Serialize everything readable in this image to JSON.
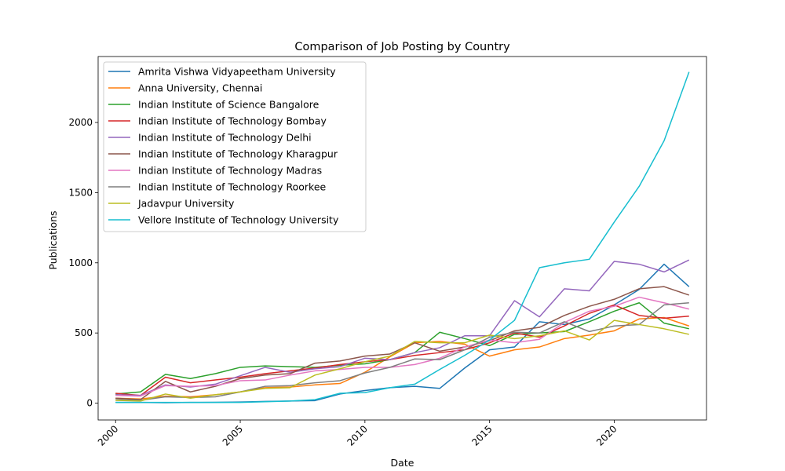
{
  "chart_data": {
    "type": "line",
    "title": "Comparison of Job Posting by Country",
    "xlabel": "Date",
    "ylabel": "Publications",
    "xlim": [
      1999.3,
      2023.7
    ],
    "ylim": [
      -120,
      2470
    ],
    "xticks": [
      2000,
      2005,
      2010,
      2015,
      2020
    ],
    "yticks": [
      0,
      500,
      1000,
      1500,
      2000
    ],
    "grid": false,
    "legend": "upper-left",
    "x": [
      2000,
      2001,
      2002,
      2003,
      2004,
      2005,
      2006,
      2007,
      2008,
      2009,
      2010,
      2011,
      2012,
      2013,
      2014,
      2015,
      2016,
      2017,
      2018,
      2019,
      2020,
      2021,
      2022,
      2023
    ],
    "series": [
      {
        "name": "Amrita Vishwa Vidyapeetham University",
        "color": "#1f77b4",
        "values": [
          5,
          5,
          3,
          5,
          6,
          8,
          12,
          15,
          18,
          65,
          90,
          110,
          120,
          105,
          250,
          380,
          400,
          580,
          560,
          600,
          700,
          810,
          990,
          830
        ]
      },
      {
        "name": "Anna University, Chennai",
        "color": "#ff7f0e",
        "values": [
          35,
          30,
          50,
          45,
          60,
          80,
          110,
          115,
          130,
          140,
          220,
          330,
          430,
          440,
          420,
          335,
          380,
          400,
          460,
          485,
          515,
          600,
          610,
          550
        ]
      },
      {
        "name": "Indian Institute of Science Bangalore",
        "color": "#2ca02c",
        "values": [
          65,
          80,
          205,
          175,
          210,
          255,
          265,
          260,
          255,
          270,
          280,
          310,
          360,
          505,
          460,
          410,
          490,
          500,
          510,
          580,
          655,
          715,
          570,
          530
        ]
      },
      {
        "name": "Indian Institute of Technology Bombay",
        "color": "#d62728",
        "values": [
          70,
          55,
          185,
          145,
          165,
          185,
          210,
          230,
          250,
          275,
          295,
          310,
          340,
          360,
          380,
          430,
          500,
          470,
          550,
          640,
          700,
          625,
          605,
          620
        ]
      },
      {
        "name": "Indian Institute of Technology Delhi",
        "color": "#9467bd",
        "values": [
          60,
          55,
          130,
          115,
          135,
          195,
          255,
          220,
          245,
          260,
          320,
          310,
          360,
          395,
          480,
          480,
          730,
          615,
          815,
          800,
          1010,
          990,
          935,
          1020
        ]
      },
      {
        "name": "Indian Institute of Technology Kharagpur",
        "color": "#8c564b",
        "values": [
          35,
          25,
          155,
          80,
          120,
          175,
          200,
          210,
          285,
          300,
          335,
          350,
          430,
          370,
          400,
          445,
          515,
          540,
          625,
          690,
          740,
          815,
          830,
          770
        ]
      },
      {
        "name": "Indian Institute of Technology Madras",
        "color": "#e377c2",
        "values": [
          55,
          50,
          125,
          120,
          125,
          160,
          165,
          200,
          230,
          240,
          255,
          255,
          275,
          320,
          400,
          450,
          430,
          455,
          575,
          655,
          690,
          755,
          715,
          670
        ]
      },
      {
        "name": "Indian Institute of Technology Roorkee",
        "color": "#7f7f7f",
        "values": [
          25,
          20,
          45,
          40,
          45,
          80,
          120,
          125,
          145,
          160,
          215,
          255,
          315,
          310,
          380,
          470,
          505,
          500,
          580,
          510,
          550,
          560,
          700,
          715
        ]
      },
      {
        "name": "Jadavpur University",
        "color": "#bcbd22",
        "values": [
          20,
          15,
          65,
          35,
          60,
          80,
          105,
          110,
          200,
          245,
          295,
          335,
          440,
          430,
          430,
          485,
          460,
          480,
          515,
          450,
          590,
          560,
          530,
          490
        ]
      },
      {
        "name": "Vellore Institute of Technology University",
        "color": "#17becf",
        "values": [
          5,
          5,
          5,
          5,
          5,
          5,
          10,
          15,
          25,
          70,
          75,
          110,
          135,
          240,
          340,
          450,
          590,
          965,
          1000,
          1025,
          1290,
          1545,
          1870,
          2360
        ]
      }
    ]
  }
}
